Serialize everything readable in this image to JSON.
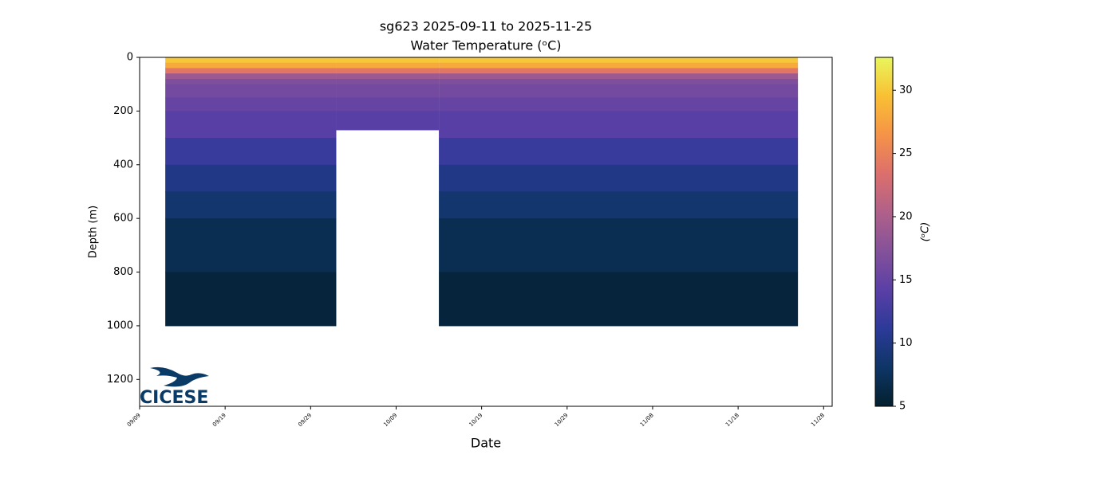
{
  "chart_data": {
    "type": "section",
    "title": "sg623 2025-09-11 to 2025-11-25",
    "subtitle": "Water Temperature (ᵒC)",
    "x_label": "Date",
    "y_label": "Depth (m)",
    "xlim": [
      "09/09",
      "11/29"
    ],
    "xticks": [
      "09/09",
      "09/19",
      "09/29",
      "10/09",
      "10/19",
      "10/29",
      "11/08",
      "11/18",
      "11/28"
    ],
    "ylim": [
      0,
      1300
    ],
    "y_inverted": true,
    "yticks": [
      0,
      200,
      400,
      600,
      800,
      1000,
      1200
    ],
    "segments": [
      {
        "start": "09/12",
        "end": "10/02",
        "max_depth": 1000
      },
      {
        "start": "10/02",
        "end": "10/14",
        "max_depth": 270
      },
      {
        "start": "10/14",
        "end": "11/25",
        "max_depth": 1000
      }
    ],
    "profile": {
      "depth": [
        0,
        20,
        40,
        60,
        80,
        100,
        150,
        200,
        300,
        400,
        500,
        600,
        800
      ],
      "temperature": [
        30,
        28,
        24,
        19,
        17,
        16,
        15,
        14,
        12,
        10,
        8.5,
        7,
        5.8
      ]
    },
    "colorbar": {
      "label": "(ᵒC)",
      "clim": [
        5,
        32.6
      ],
      "ticks": [
        5,
        10,
        15,
        20,
        25,
        30
      ],
      "colormap": [
        "#03202d",
        "#0e3566",
        "#2c3a98",
        "#5a3fa6",
        "#84519a",
        "#b0608a",
        "#dc6f6c",
        "#f59348",
        "#f9c033",
        "#e8f65c"
      ]
    },
    "logo": "CICESE"
  }
}
